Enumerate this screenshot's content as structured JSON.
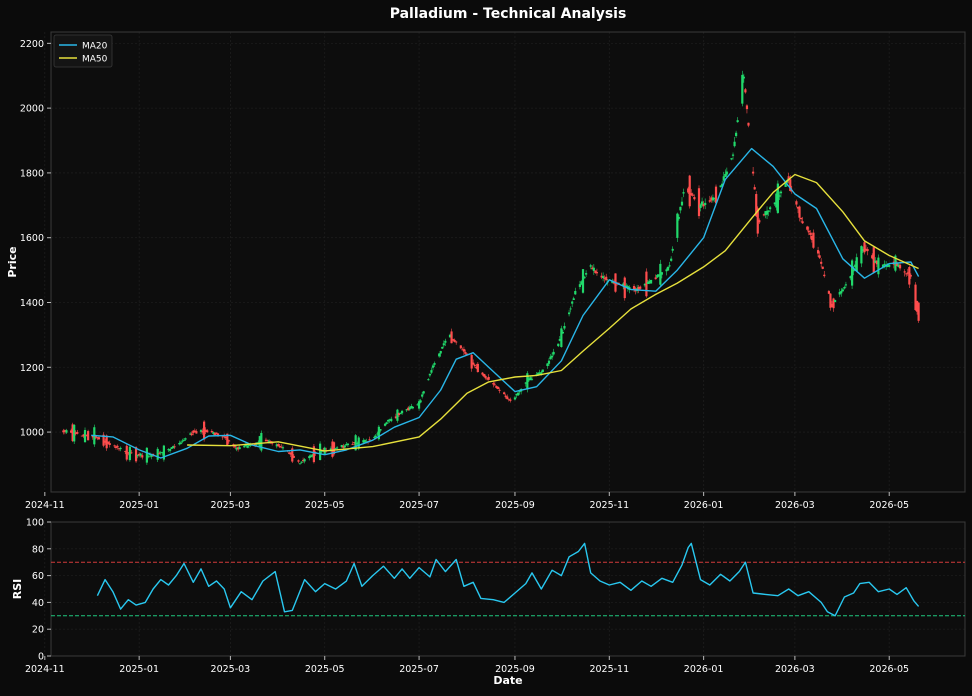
{
  "title": "Palladium - Technical Analysis",
  "colors": {
    "background": "#0b0b0b",
    "panel": "#0d0d0d",
    "axis": "#3a3a3a",
    "grid": "#1d1d1d",
    "text": "#ffffff",
    "up": "#21d96b",
    "down": "#ff4d4d",
    "ma20": "#29b6e8",
    "ma50": "#e6e03c",
    "rsi": "#29c8f0",
    "overbought": "#d23b3b",
    "oversold": "#1fc87e"
  },
  "chart_data": [
    {
      "type": "candlestick",
      "ylabel": "Price",
      "xlabel": "",
      "ylim": [
        815,
        2235
      ],
      "xlim": [
        "2024-11-05",
        "2026-06-19"
      ],
      "yticks": [
        1000,
        1200,
        1400,
        1600,
        1800,
        2000,
        2200
      ],
      "xticks": [
        "2024-11",
        "2025-01",
        "2025-03",
        "2025-05",
        "2025-07",
        "2025-09",
        "2025-11",
        "2026-01",
        "2026-03",
        "2026-05"
      ],
      "grid": true,
      "legend": {
        "placement": "top-left",
        "entries": [
          "MA20",
          "MA50"
        ]
      },
      "price_path": [
        [
          "2024-11-15",
          1005
        ],
        [
          "2024-11-25",
          990
        ],
        [
          "2024-12-05",
          985
        ],
        [
          "2024-12-15",
          960
        ],
        [
          "2024-12-25",
          935
        ],
        [
          "2025-01-05",
          925
        ],
        [
          "2025-01-15",
          935
        ],
        [
          "2025-01-25",
          955
        ],
        [
          "2025-02-05",
          1000
        ],
        [
          "2025-02-15",
          1005
        ],
        [
          "2025-02-25",
          985
        ],
        [
          "2025-03-05",
          950
        ],
        [
          "2025-03-15",
          960
        ],
        [
          "2025-03-25",
          975
        ],
        [
          "2025-04-05",
          950
        ],
        [
          "2025-04-15",
          905
        ],
        [
          "2025-04-25",
          935
        ],
        [
          "2025-05-05",
          945
        ],
        [
          "2025-05-20",
          965
        ],
        [
          "2025-06-01",
          975
        ],
        [
          "2025-06-10",
          1030
        ],
        [
          "2025-06-20",
          1060
        ],
        [
          "2025-07-01",
          1085
        ],
        [
          "2025-07-10",
          1200
        ],
        [
          "2025-07-20",
          1300
        ],
        [
          "2025-07-30",
          1250
        ],
        [
          "2025-08-10",
          1185
        ],
        [
          "2025-08-20",
          1140
        ],
        [
          "2025-08-30",
          1095
        ],
        [
          "2025-09-10",
          1160
        ],
        [
          "2025-09-20",
          1190
        ],
        [
          "2025-10-01",
          1290
        ],
        [
          "2025-10-10",
          1430
        ],
        [
          "2025-10-20",
          1510
        ],
        [
          "2025-10-30",
          1470
        ],
        [
          "2025-11-10",
          1450
        ],
        [
          "2025-11-20",
          1440
        ],
        [
          "2025-11-30",
          1470
        ],
        [
          "2025-12-10",
          1510
        ],
        [
          "2025-12-20",
          1760
        ],
        [
          "2025-12-30",
          1700
        ],
        [
          "2026-01-10",
          1730
        ],
        [
          "2026-01-20",
          1850
        ],
        [
          "2026-01-27",
          2100
        ],
        [
          "2026-02-05",
          1650
        ],
        [
          "2026-02-15",
          1700
        ],
        [
          "2026-02-25",
          1780
        ],
        [
          "2026-03-05",
          1660
        ],
        [
          "2026-03-15",
          1580
        ],
        [
          "2026-03-25",
          1390
        ],
        [
          "2026-04-05",
          1470
        ],
        [
          "2026-04-15",
          1570
        ],
        [
          "2026-04-25",
          1510
        ],
        [
          "2026-05-05",
          1520
        ],
        [
          "2026-05-15",
          1480
        ],
        [
          "2026-05-20",
          1370
        ]
      ],
      "series": [
        {
          "name": "MA20",
          "points": [
            [
              "2024-12-01",
              990
            ],
            [
              "2024-12-15",
              985
            ],
            [
              "2025-01-01",
              945
            ],
            [
              "2025-01-15",
              920
            ],
            [
              "2025-02-01",
              950
            ],
            [
              "2025-02-15",
              988
            ],
            [
              "2025-03-01",
              990
            ],
            [
              "2025-03-15",
              960
            ],
            [
              "2025-04-01",
              940
            ],
            [
              "2025-04-15",
              945
            ],
            [
              "2025-05-01",
              930
            ],
            [
              "2025-05-15",
              945
            ],
            [
              "2025-06-01",
              975
            ],
            [
              "2025-06-15",
              1015
            ],
            [
              "2025-07-01",
              1045
            ],
            [
              "2025-07-15",
              1130
            ],
            [
              "2025-07-25",
              1225
            ],
            [
              "2025-08-05",
              1245
            ],
            [
              "2025-08-15",
              1200
            ],
            [
              "2025-09-01",
              1125
            ],
            [
              "2025-09-15",
              1140
            ],
            [
              "2025-10-01",
              1220
            ],
            [
              "2025-10-15",
              1360
            ],
            [
              "2025-11-01",
              1470
            ],
            [
              "2025-11-15",
              1440
            ],
            [
              "2025-12-01",
              1435
            ],
            [
              "2025-12-15",
              1500
            ],
            [
              "2026-01-01",
              1600
            ],
            [
              "2026-01-15",
              1780
            ],
            [
              "2026-02-01",
              1875
            ],
            [
              "2026-02-15",
              1820
            ],
            [
              "2026-03-01",
              1735
            ],
            [
              "2026-03-15",
              1690
            ],
            [
              "2026-04-01",
              1535
            ],
            [
              "2026-04-15",
              1475
            ],
            [
              "2026-05-01",
              1520
            ],
            [
              "2026-05-15",
              1525
            ],
            [
              "2026-05-20",
              1480
            ]
          ]
        },
        {
          "name": "MA50",
          "points": [
            [
              "2025-02-01",
              960
            ],
            [
              "2025-03-01",
              958
            ],
            [
              "2025-04-01",
              970
            ],
            [
              "2025-05-01",
              942
            ],
            [
              "2025-06-01",
              955
            ],
            [
              "2025-07-01",
              985
            ],
            [
              "2025-07-15",
              1040
            ],
            [
              "2025-08-01",
              1120
            ],
            [
              "2025-08-15",
              1155
            ],
            [
              "2025-09-01",
              1170
            ],
            [
              "2025-09-15",
              1175
            ],
            [
              "2025-10-01",
              1190
            ],
            [
              "2025-10-15",
              1250
            ],
            [
              "2025-11-01",
              1320
            ],
            [
              "2025-11-15",
              1380
            ],
            [
              "2025-12-01",
              1425
            ],
            [
              "2025-12-15",
              1460
            ],
            [
              "2026-01-01",
              1510
            ],
            [
              "2026-01-15",
              1560
            ],
            [
              "2026-02-01",
              1660
            ],
            [
              "2026-02-15",
              1740
            ],
            [
              "2026-03-01",
              1795
            ],
            [
              "2026-03-15",
              1770
            ],
            [
              "2026-04-01",
              1680
            ],
            [
              "2026-04-15",
              1590
            ],
            [
              "2026-05-01",
              1545
            ],
            [
              "2026-05-20",
              1505
            ]
          ]
        }
      ]
    },
    {
      "type": "line",
      "ylabel": "RSI",
      "xlabel": "Date",
      "ylim": [
        0,
        100
      ],
      "xlim": [
        "2024-11-05",
        "2026-06-19"
      ],
      "yticks": [
        0,
        20,
        40,
        60,
        80,
        100
      ],
      "xticks": [
        "2024-11",
        "2025-01",
        "2025-03",
        "2025-05",
        "2025-07",
        "2025-09",
        "2025-11",
        "2026-01",
        "2026-03",
        "2026-05"
      ],
      "grid": true,
      "reference_lines": [
        70,
        30
      ],
      "series": [
        {
          "name": "RSI",
          "points": [
            [
              "2024-12-05",
              45
            ],
            [
              "2024-12-10",
              57
            ],
            [
              "2024-12-15",
              48
            ],
            [
              "2024-12-20",
              35
            ],
            [
              "2024-12-25",
              42
            ],
            [
              "2024-12-30",
              38
            ],
            [
              "2025-01-05",
              40
            ],
            [
              "2025-01-10",
              50
            ],
            [
              "2025-01-15",
              57
            ],
            [
              "2025-01-20",
              53
            ],
            [
              "2025-01-25",
              60
            ],
            [
              "2025-01-30",
              69
            ],
            [
              "2025-02-05",
              55
            ],
            [
              "2025-02-10",
              65
            ],
            [
              "2025-02-15",
              52
            ],
            [
              "2025-02-20",
              56
            ],
            [
              "2025-02-25",
              50
            ],
            [
              "2025-03-01",
              36
            ],
            [
              "2025-03-08",
              48
            ],
            [
              "2025-03-15",
              42
            ],
            [
              "2025-03-22",
              56
            ],
            [
              "2025-03-30",
              63
            ],
            [
              "2025-04-05",
              33
            ],
            [
              "2025-04-10",
              34
            ],
            [
              "2025-04-18",
              57
            ],
            [
              "2025-04-25",
              48
            ],
            [
              "2025-05-01",
              54
            ],
            [
              "2025-05-08",
              50
            ],
            [
              "2025-05-15",
              56
            ],
            [
              "2025-05-20",
              69
            ],
            [
              "2025-05-25",
              52
            ],
            [
              "2025-06-01",
              60
            ],
            [
              "2025-06-08",
              67
            ],
            [
              "2025-06-15",
              58
            ],
            [
              "2025-06-20",
              65
            ],
            [
              "2025-06-25",
              58
            ],
            [
              "2025-07-01",
              66
            ],
            [
              "2025-07-08",
              59
            ],
            [
              "2025-07-12",
              72
            ],
            [
              "2025-07-18",
              63
            ],
            [
              "2025-07-25",
              72
            ],
            [
              "2025-07-30",
              52
            ],
            [
              "2025-08-05",
              55
            ],
            [
              "2025-08-10",
              43
            ],
            [
              "2025-08-18",
              42
            ],
            [
              "2025-08-25",
              40
            ],
            [
              "2025-09-01",
              47
            ],
            [
              "2025-09-08",
              54
            ],
            [
              "2025-09-12",
              62
            ],
            [
              "2025-09-18",
              50
            ],
            [
              "2025-09-25",
              64
            ],
            [
              "2025-10-01",
              60
            ],
            [
              "2025-10-06",
              74
            ],
            [
              "2025-10-12",
              78
            ],
            [
              "2025-10-16",
              84
            ],
            [
              "2025-10-20",
              62
            ],
            [
              "2025-10-26",
              56
            ],
            [
              "2025-11-01",
              53
            ],
            [
              "2025-11-08",
              55
            ],
            [
              "2025-11-15",
              49
            ],
            [
              "2025-11-22",
              56
            ],
            [
              "2025-11-28",
              52
            ],
            [
              "2025-12-05",
              58
            ],
            [
              "2025-12-12",
              55
            ],
            [
              "2025-12-18",
              68
            ],
            [
              "2025-12-22",
              81
            ],
            [
              "2025-12-24",
              84
            ],
            [
              "2025-12-30",
              57
            ],
            [
              "2026-01-05",
              53
            ],
            [
              "2026-01-12",
              61
            ],
            [
              "2026-01-18",
              56
            ],
            [
              "2026-01-24",
              63
            ],
            [
              "2026-01-28",
              70
            ],
            [
              "2026-02-02",
              47
            ],
            [
              "2026-02-10",
              46
            ],
            [
              "2026-02-18",
              45
            ],
            [
              "2026-02-25",
              50
            ],
            [
              "2026-03-03",
              45
            ],
            [
              "2026-03-10",
              48
            ],
            [
              "2026-03-18",
              40
            ],
            [
              "2026-03-22",
              33
            ],
            [
              "2026-03-27",
              30
            ],
            [
              "2026-04-02",
              44
            ],
            [
              "2026-04-08",
              47
            ],
            [
              "2026-04-12",
              54
            ],
            [
              "2026-04-18",
              55
            ],
            [
              "2026-04-24",
              48
            ],
            [
              "2026-05-01",
              50
            ],
            [
              "2026-05-06",
              46
            ],
            [
              "2026-05-12",
              51
            ],
            [
              "2026-05-17",
              41
            ],
            [
              "2026-05-20",
              37
            ]
          ]
        }
      ]
    }
  ]
}
